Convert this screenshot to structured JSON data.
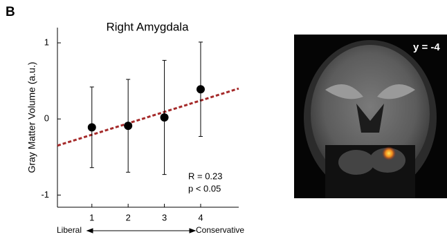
{
  "chart_data": {
    "type": "errorbar",
    "panel_label": "B",
    "title": "Right Amygdala",
    "ylabel": "Gray Matter Volume (a.u.)",
    "x": [
      1,
      2,
      3,
      4
    ],
    "values": [
      -0.11,
      -0.09,
      0.02,
      0.39
    ],
    "errors": [
      0.53,
      0.61,
      0.75,
      0.62
    ],
    "color": "#000000",
    "fit": {
      "x": [
        0.05,
        5.05
      ],
      "y": [
        -0.35,
        0.4
      ],
      "color": "#a52a2a"
    },
    "xlim": [
      0.05,
      5.05
    ],
    "ylim": [
      -1.16,
      1.2
    ],
    "xticks": [
      1,
      2,
      3,
      4
    ],
    "yticks": [
      -1,
      0,
      1
    ],
    "annotations": [
      "R = 0.23",
      "p < 0.05"
    ],
    "x_end_labels": [
      "Liberal",
      "Conservative"
    ]
  },
  "image": {
    "label": "y = -4"
  }
}
